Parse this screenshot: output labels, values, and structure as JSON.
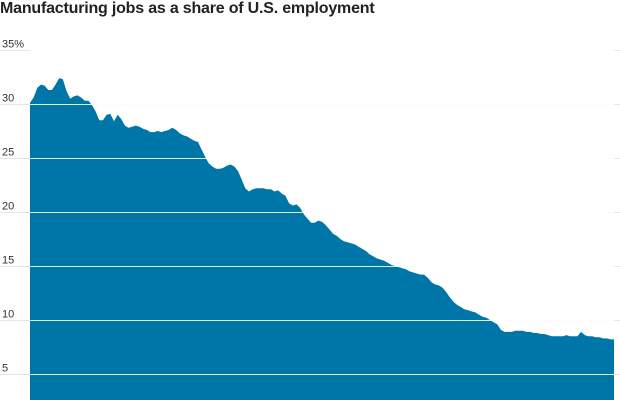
{
  "chart_data": {
    "type": "area",
    "title": "Manufacturing jobs as a share of U.S. employment",
    "xlabel": "",
    "ylabel": "",
    "ylim": [
      0,
      35
    ],
    "y_ticks": [
      {
        "value": 35,
        "label": "35%"
      },
      {
        "value": 30,
        "label": "30"
      },
      {
        "value": 25,
        "label": "25"
      },
      {
        "value": 20,
        "label": "20"
      },
      {
        "value": 15,
        "label": "15"
      },
      {
        "value": 10,
        "label": "10"
      },
      {
        "value": 5,
        "label": "5"
      }
    ],
    "grid": true,
    "colors": {
      "area": "#0076A8",
      "grid_over_white": "#e6e6e6",
      "grid_over_area": "#ffffff"
    },
    "series": [
      {
        "values": [
          30.1,
          30.6,
          31.5,
          31.8,
          31.7,
          31.3,
          31.3,
          31.8,
          32.4,
          32.3,
          31.2,
          30.5,
          30.7,
          30.8,
          30.6,
          30.3,
          30.3,
          29.9,
          29.3,
          28.5,
          28.5,
          29.0,
          29.1,
          28.4,
          29.0,
          28.6,
          28.0,
          27.8,
          27.9,
          28.0,
          27.9,
          27.7,
          27.6,
          27.4,
          27.4,
          27.5,
          27.4,
          27.5,
          27.6,
          27.8,
          27.6,
          27.3,
          27.1,
          27.0,
          26.8,
          26.6,
          26.5,
          25.8,
          25.1,
          24.5,
          24.2,
          24.0,
          24.0,
          24.1,
          24.3,
          24.4,
          24.2,
          23.8,
          23.0,
          22.2,
          21.9,
          22.1,
          22.2,
          22.2,
          22.2,
          22.1,
          22.1,
          21.9,
          22.0,
          21.7,
          21.5,
          20.8,
          20.6,
          20.7,
          20.4,
          19.8,
          19.4,
          19.0,
          19.0,
          19.2,
          19.1,
          18.8,
          18.4,
          18.0,
          17.8,
          17.5,
          17.3,
          17.2,
          17.1,
          17.0,
          16.8,
          16.6,
          16.4,
          16.1,
          15.9,
          15.7,
          15.6,
          15.5,
          15.3,
          15.1,
          15.0,
          14.9,
          14.8,
          14.7,
          14.5,
          14.4,
          14.3,
          14.2,
          14.2,
          13.9,
          13.5,
          13.3,
          13.2,
          13.0,
          12.6,
          12.1,
          11.7,
          11.4,
          11.2,
          11.0,
          10.9,
          10.8,
          10.7,
          10.5,
          10.3,
          10.2,
          10.0,
          9.8,
          9.6,
          9.1,
          8.9,
          8.9,
          8.9,
          9.0,
          9.0,
          9.0,
          8.9,
          8.9,
          8.8,
          8.8,
          8.7,
          8.7,
          8.6,
          8.5,
          8.5,
          8.5,
          8.5,
          8.6,
          8.5,
          8.5,
          8.5,
          8.9,
          8.6,
          8.5,
          8.5,
          8.4,
          8.4,
          8.3,
          8.3,
          8.2,
          8.2
        ]
      }
    ]
  }
}
